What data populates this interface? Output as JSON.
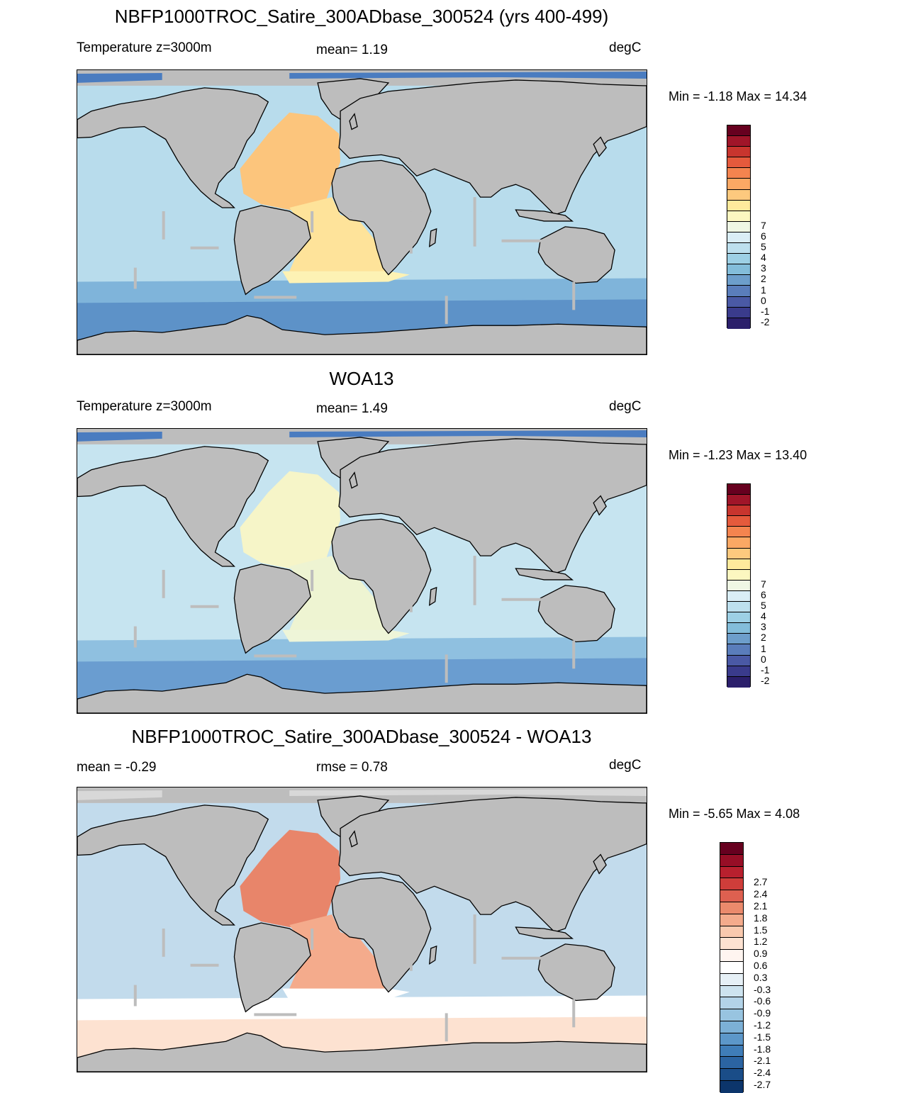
{
  "panels": [
    {
      "title": "NBFP1000TROC_Satire_300ADbase_300524 (yrs 400-499)",
      "left_label": "Temperature z=3000m",
      "center_label": "mean=   1.19",
      "units": "degC",
      "minmax": "Min =  -1.18 Max =  14.34",
      "colorbar": {
        "colors": [
          "#67001f",
          "#a01529",
          "#c8352e",
          "#e55a3c",
          "#f4844f",
          "#fba864",
          "#fdc97e",
          "#feea9c",
          "#fcf7c0",
          "#eff7e4",
          "#daeef6",
          "#bde0ee",
          "#9dd0e5",
          "#83bdda",
          "#6d9ecb",
          "#5a7dbb",
          "#4a59a5",
          "#3a3b8c",
          "#2b1f6b"
        ],
        "labels": [
          "7",
          "6",
          "5",
          "4",
          "3",
          "2",
          "1",
          "0",
          "-1",
          "-2"
        ]
      },
      "map_style": {
        "ocean": "#b8dcec",
        "south": "#7fb4da",
        "deep_south": "#5d92c8",
        "atl_n": "#fcc57c",
        "atl_mid": "#fee39a",
        "atl_s": "#fdf2b4",
        "arctic": "#4a7cc0"
      }
    },
    {
      "title": "WOA13",
      "left_label": "Temperature z=3000m",
      "center_label": "mean=   1.49",
      "units": "degC",
      "minmax": "Min =  -1.23 Max =  13.40",
      "colorbar": {
        "colors": [
          "#67001f",
          "#a01529",
          "#c8352e",
          "#e55a3c",
          "#f4844f",
          "#fba864",
          "#fdc97e",
          "#feea9c",
          "#fcf7c0",
          "#eff7e4",
          "#daeef6",
          "#bde0ee",
          "#9dd0e5",
          "#83bdda",
          "#6d9ecb",
          "#5a7dbb",
          "#4a59a5",
          "#3a3b8c",
          "#2b1f6b"
        ],
        "labels": [
          "7",
          "6",
          "5",
          "4",
          "3",
          "2",
          "1",
          "0",
          "-1",
          "-2"
        ]
      },
      "map_style": {
        "ocean": "#c6e4f0",
        "south": "#8fc0e0",
        "deep_south": "#6a9dd0",
        "atl_n": "#f6f5c8",
        "atl_mid": "#eef4d2",
        "atl_s": "#eef5d8",
        "arctic": "#4a7cc0"
      }
    },
    {
      "title": "NBFP1000TROC_Satire_300ADbase_300524 - WOA13",
      "left_label": "mean =  -0.29",
      "center_label": "rmse =   0.78",
      "units": "degC",
      "minmax": "Min =  -5.65 Max =   4.08",
      "colorbar": {
        "colors": [
          "#67001f",
          "#970e26",
          "#b8202e",
          "#cf3d3a",
          "#de6050",
          "#eb8a6c",
          "#f4ab8c",
          "#f9c9ae",
          "#fde2d1",
          "#fff5f0",
          "#ffffff",
          "#e6f0f6",
          "#cde3ef",
          "#b3d3e8",
          "#98c4e0",
          "#7cb0d6",
          "#5c97c9",
          "#3f7db8",
          "#2b64a2",
          "#1a4d88",
          "#0c356b"
        ],
        "labels": [
          "2.7",
          "2.4",
          "2.1",
          "1.8",
          "1.5",
          "1.2",
          "0.9",
          "0.6",
          "0.3",
          "-0.3",
          "-0.6",
          "-0.9",
          "-1.2",
          "-1.5",
          "-1.8",
          "-2.1",
          "-2.4",
          "-2.7"
        ]
      },
      "map_style": {
        "ocean": "#c2dbec",
        "south": "#ffffff",
        "deep_south": "#fde2d1",
        "atl_n": "#e8856a",
        "atl_mid": "#f4ab8c",
        "atl_s": "#ffffff",
        "arctic": "#d8d8d8"
      }
    }
  ]
}
